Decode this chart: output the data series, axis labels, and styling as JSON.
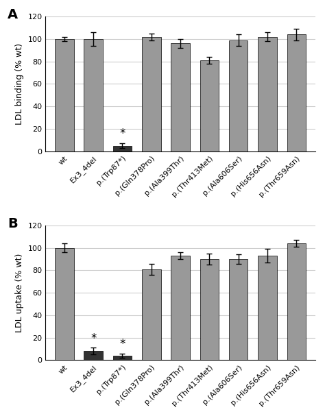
{
  "panel_A": {
    "title": "A",
    "ylabel": "LDL binding (% wt)",
    "categories": [
      "wt",
      "Ex3_4del",
      "p.(Trp87*)",
      "p.(Gln378Pro)",
      "p.(Ala399Thr)",
      "p.(Thr413Met)",
      "p.(Ala606Ser)",
      "p.(His656Asn)",
      "p.(Thr659Asn)"
    ],
    "values": [
      100,
      100,
      5,
      102,
      96,
      81,
      99,
      102,
      104
    ],
    "errors": [
      2,
      6,
      2,
      3,
      4,
      3,
      5,
      4,
      5
    ],
    "bar_colors": [
      "#999999",
      "#999999",
      "#333333",
      "#999999",
      "#999999",
      "#999999",
      "#999999",
      "#999999",
      "#999999"
    ],
    "star": [
      false,
      false,
      true,
      false,
      false,
      false,
      false,
      false,
      false
    ]
  },
  "panel_B": {
    "title": "B",
    "ylabel": "LDL uptake (% wt)",
    "categories": [
      "wt",
      "Ex3_4del",
      "p.(Trp87*)",
      "p.(Gln378Pro)",
      "p.(Ala399Thr)",
      "p.(Thr413Met)",
      "p.(Ala606Ser)",
      "p.(His656Asn)",
      "p.(Thr659Asn)"
    ],
    "values": [
      100,
      8,
      4,
      81,
      93,
      90,
      90,
      93,
      104
    ],
    "errors": [
      4,
      3,
      2,
      5,
      3,
      5,
      4,
      6,
      3
    ],
    "bar_colors": [
      "#999999",
      "#333333",
      "#333333",
      "#999999",
      "#999999",
      "#999999",
      "#999999",
      "#999999",
      "#999999"
    ],
    "star": [
      false,
      true,
      true,
      false,
      false,
      false,
      false,
      false,
      false
    ]
  },
  "ylim": [
    0,
    120
  ],
  "yticks": [
    0,
    20,
    40,
    60,
    80,
    100,
    120
  ],
  "figsize": [
    4.74,
    6.04
  ],
  "dpi": 100,
  "bar_width": 0.65,
  "grid_color": "#cccccc",
  "grid_linewidth": 0.8,
  "tick_fontsize": 8,
  "ylabel_fontsize": 9,
  "panel_label_fontsize": 14,
  "star_fontsize": 12
}
